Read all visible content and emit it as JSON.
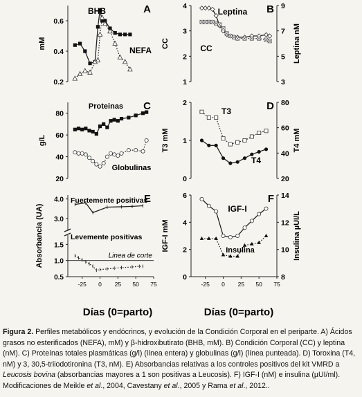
{
  "figure": {
    "xlabel": "Días (0=parto)",
    "caption": {
      "label": "Figura 2.",
      "t1": " Perfiles metabólicos y endócrinos, y evolución de la Condición Corporal en el periparte. A) Ácidos grasos no esterificados (NEFA), mM) y β-hidroxibutirato (BHB, mM). B) Condición Corporal (CC) y leptina (nM). C) Proteínas totales plasmáticas (g/l) (línea entera) y globulinas (g/l) (línea punteada). D) Toroxina (T4, nM) y 3, 30,5-triiodotironina (T3, nM). E) Absorbancias relativas a los controles positivos del kit VMRD a ",
      "i1": "Leucosis bovina",
      "t2": " (absorbancias mayores a 1 son positivas a Leucosis). F) IGF-I (nM) e insulina (µUI/ml). Modificaciones de Meikle ",
      "i2": "et al",
      "t3": "., 2004, Cavestany ",
      "i3": "et al",
      "t4": "., 2005 y Rama ",
      "i4": "et al",
      "t5": "., 2012.."
    }
  },
  "chart_data": [
    {
      "panel": "A",
      "type": "line",
      "ylabel": "mM",
      "ylim": [
        0.2,
        0.7
      ],
      "yticks": [
        "0.2",
        "0.4",
        "0.6"
      ],
      "series": [
        {
          "name": "BHB",
          "style": "solid",
          "marker": "filled-square",
          "x": [
            -35,
            -28,
            -21,
            -14,
            -7,
            -3,
            0,
            3,
            7,
            14,
            21,
            28,
            35,
            42
          ],
          "y": [
            0.44,
            0.45,
            0.4,
            0.32,
            0.33,
            0.56,
            0.67,
            0.6,
            0.6,
            0.55,
            0.52,
            0.51,
            0.51,
            0.51
          ]
        },
        {
          "name": "NEFA",
          "style": "dotted",
          "marker": "open-triangle",
          "x": [
            -35,
            -28,
            -21,
            -14,
            -7,
            -3,
            0,
            3,
            7,
            14,
            21,
            28,
            35,
            42
          ],
          "y": [
            0.22,
            0.25,
            0.27,
            0.26,
            0.33,
            0.34,
            0.51,
            0.62,
            0.58,
            0.53,
            0.45,
            0.36,
            0.33,
            0.28
          ]
        }
      ]
    },
    {
      "panel": "B",
      "type": "line",
      "ylabel": "CC",
      "ylim": [
        1,
        4
      ],
      "yticks": [
        "1",
        "2",
        "3",
        "4"
      ],
      "y2label": "Leptina nM",
      "y2lim": [
        3,
        9
      ],
      "y2ticks": [
        "3",
        "5",
        "7",
        "9"
      ],
      "series": [
        {
          "name": "Leptina",
          "style": "solid",
          "marker": "open-diamond",
          "axis": "y2",
          "x": [
            -30,
            -25,
            -20,
            -15,
            -10,
            -5,
            0,
            5,
            10,
            15,
            20,
            30,
            40,
            50,
            60,
            65
          ],
          "y": [
            8.8,
            8.8,
            8.8,
            8.7,
            8.2,
            7.4,
            7.0,
            6.7,
            6.6,
            6.5,
            6.5,
            6.5,
            6.6,
            6.6,
            6.7,
            6.6
          ]
        },
        {
          "name": "CC",
          "style": "dotted",
          "marker": "open-square-x",
          "axis": "y",
          "x": [
            -30,
            -25,
            -20,
            -15,
            -10,
            -5,
            0,
            5,
            10,
            15,
            20,
            30,
            40,
            50,
            60,
            65
          ],
          "y": [
            3.35,
            3.35,
            3.35,
            3.35,
            3.3,
            3.25,
            3.1,
            2.9,
            2.8,
            2.75,
            2.7,
            2.7,
            2.7,
            2.7,
            2.65,
            2.6
          ]
        }
      ]
    },
    {
      "panel": "C",
      "type": "line",
      "ylabel": "g/L",
      "ylim": [
        20,
        90
      ],
      "yticks": [
        "20",
        "40",
        "60",
        "80"
      ],
      "series": [
        {
          "name": "Proteinas",
          "style": "solid",
          "marker": "filled-square",
          "x": [
            -35,
            -30,
            -25,
            -20,
            -15,
            -10,
            -5,
            0,
            5,
            10,
            15,
            20,
            25,
            30,
            40,
            50,
            60,
            65
          ],
          "y": [
            65,
            66,
            65,
            66,
            64,
            63,
            61,
            68,
            70,
            67,
            73,
            74,
            73,
            75,
            76,
            78,
            80,
            81
          ]
        },
        {
          "name": "Globulinas",
          "style": "dotted",
          "marker": "open-circle",
          "x": [
            -35,
            -30,
            -25,
            -20,
            -15,
            -10,
            -5,
            0,
            5,
            10,
            15,
            20,
            25,
            30,
            40,
            50,
            60,
            65
          ],
          "y": [
            44,
            43,
            43,
            42,
            39,
            36,
            33,
            31,
            34,
            40,
            43,
            42,
            41,
            43,
            46,
            46,
            45,
            55
          ]
        }
      ]
    },
    {
      "panel": "D",
      "type": "line",
      "ylabel": "T3 mM",
      "ylim": [
        0,
        2
      ],
      "yticks": [
        "0",
        "1",
        "2"
      ],
      "y2label": "T4 mM",
      "y2lim": [
        20,
        80
      ],
      "y2ticks": [
        "20",
        "40",
        "60",
        "80"
      ],
      "series": [
        {
          "name": "T3",
          "style": "dotted",
          "marker": "open-square",
          "axis": "y",
          "x": [
            -30,
            -20,
            -10,
            0,
            10,
            20,
            30,
            40,
            50,
            60
          ],
          "y": [
            1.75,
            1.6,
            1.6,
            1.05,
            0.9,
            0.95,
            1.0,
            1.1,
            1.2,
            1.25
          ]
        },
        {
          "name": "T4",
          "style": "solid",
          "marker": "filled-circle",
          "axis": "y2",
          "x": [
            -30,
            -20,
            -10,
            0,
            10,
            20,
            30,
            40,
            50,
            60
          ],
          "y": [
            50,
            46,
            46,
            36,
            32,
            33,
            36,
            39,
            41,
            43
          ]
        }
      ]
    },
    {
      "panel": "E",
      "type": "line",
      "ylabel": "Absorbancia (UA)",
      "yticks_upper": [
        "3.0",
        "4.0"
      ],
      "yticks_lower": [
        "0.5",
        "1.0",
        "1.5"
      ],
      "ylim_upper": [
        2.5,
        4.2
      ],
      "ylim_lower": [
        0.5,
        1.7
      ],
      "annotation": "Linea de corte",
      "cutoff": 1.0,
      "series": [
        {
          "name": "Fuertemente positivas",
          "style": "solid",
          "marker": "dash",
          "x": [
            -35,
            -20,
            -10,
            10,
            30,
            45,
            60
          ],
          "y": [
            3.72,
            3.8,
            3.3,
            3.58,
            3.6,
            3.62,
            3.65
          ]
        },
        {
          "name": "Levemente positivas",
          "style": "dotted",
          "marker": "dash",
          "x": [
            -35,
            -30,
            -25,
            -20,
            -15,
            -10,
            -5,
            0,
            10,
            20,
            30,
            45,
            55,
            60
          ],
          "y": [
            1.15,
            1.08,
            1.02,
            0.96,
            0.9,
            0.82,
            0.7,
            0.72,
            0.74,
            0.76,
            0.78,
            0.8,
            0.82,
            0.82
          ]
        }
      ]
    },
    {
      "panel": "F",
      "type": "line",
      "ylabel": "IGF-I mM",
      "ylim": [
        0,
        6
      ],
      "yticks": [
        "0",
        "2",
        "4",
        "6"
      ],
      "y2label": "Insulina µUI/L",
      "y2lim": [
        8,
        14
      ],
      "y2ticks": [
        "8",
        "10",
        "12",
        "14"
      ],
      "series": [
        {
          "name": "IGF-I",
          "style": "solid",
          "marker": "open-circle",
          "axis": "y",
          "x": [
            -30,
            -20,
            -10,
            0,
            10,
            20,
            30,
            40,
            50,
            60
          ],
          "y": [
            5.7,
            5.2,
            4.8,
            3.0,
            2.9,
            3.0,
            3.6,
            4.1,
            4.6,
            5.0
          ]
        },
        {
          "name": "Insulina",
          "style": "dotted",
          "marker": "filled-triangle",
          "axis": "y2",
          "x": [
            -30,
            -20,
            -10,
            0,
            10,
            20,
            30,
            40,
            50,
            60
          ],
          "y": [
            10.8,
            10.8,
            10.8,
            9.6,
            9.5,
            9.5,
            10.3,
            10.4,
            10.5,
            11.0
          ]
        }
      ]
    }
  ],
  "xaxis": {
    "ticks": [
      "-50",
      "-25",
      "0",
      "25",
      "50",
      "75"
    ],
    "range": [
      -45,
      75
    ]
  }
}
